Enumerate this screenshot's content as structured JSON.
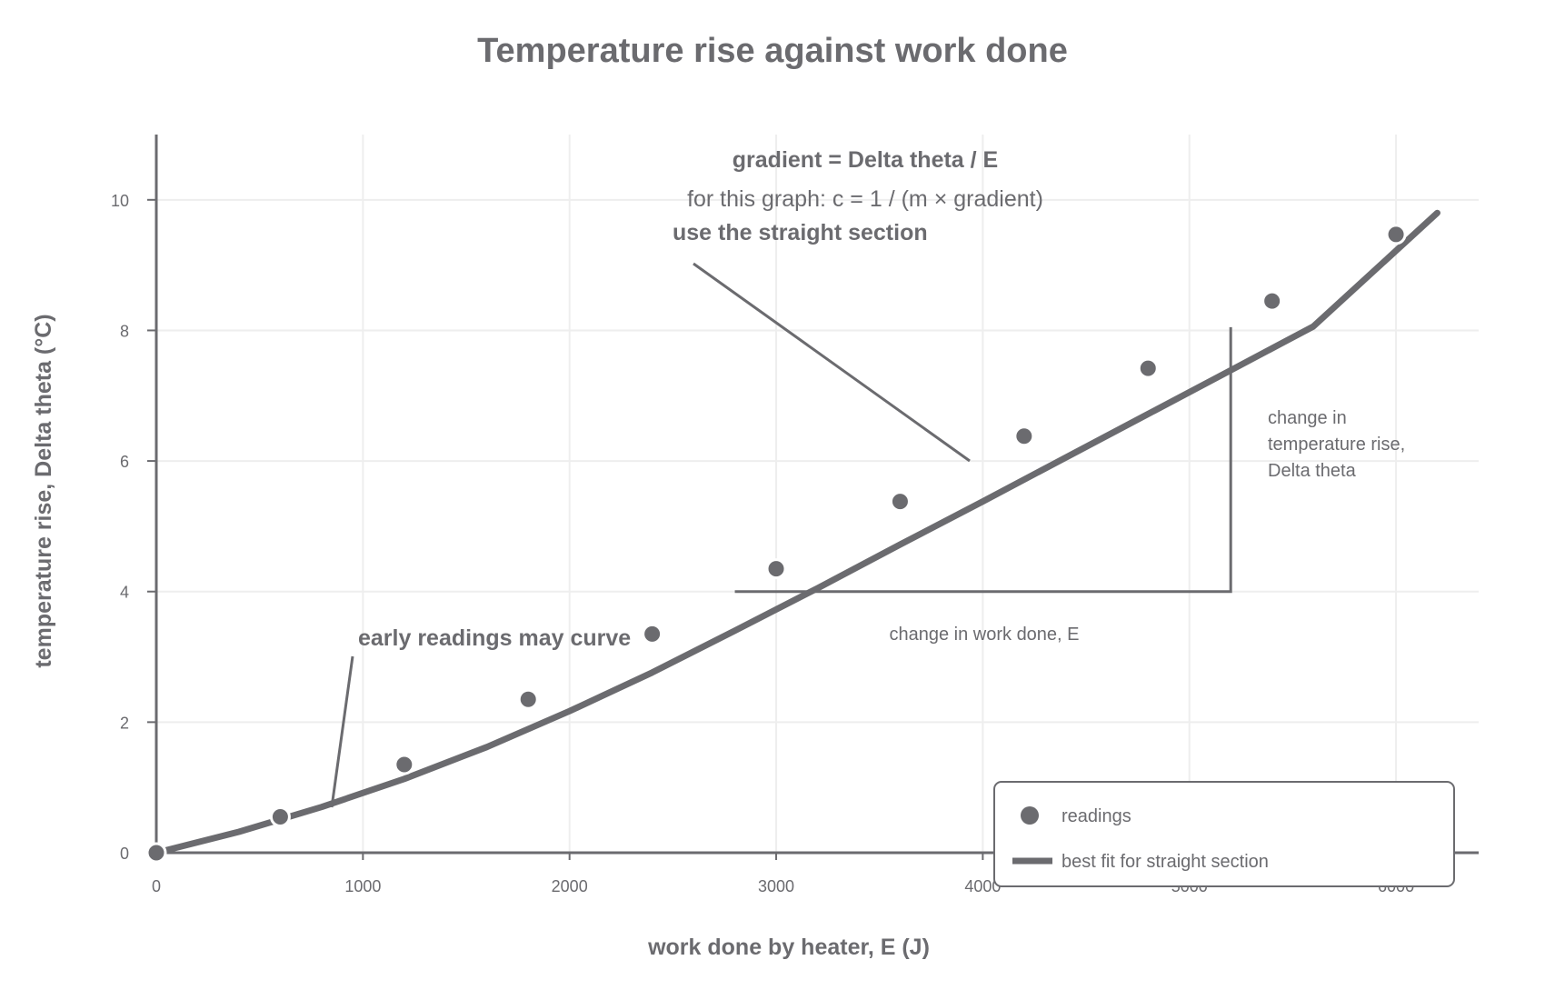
{
  "chart_data": {
    "type": "scatter",
    "title": "Temperature rise against work done",
    "xlabel": "work done by heater, E (J)",
    "ylabel": "temperature rise, Delta theta (°C)",
    "xlim": [
      0,
      6400
    ],
    "ylim": [
      0,
      11
    ],
    "xticks": [
      0,
      1000,
      2000,
      3000,
      4000,
      5000,
      6000
    ],
    "yticks": [
      0,
      2,
      4,
      6,
      8,
      10
    ],
    "grid": true,
    "legend_position": "bottom-right",
    "colors": {
      "ink": "#6b6b6f",
      "grid": "#eeeeee"
    },
    "series": [
      {
        "name": "readings",
        "type": "scatter",
        "x": [
          0,
          600,
          1200,
          1800,
          2400,
          3000,
          3600,
          4200,
          4800,
          5400,
          6000
        ],
        "y": [
          0.0,
          0.55,
          1.35,
          2.35,
          3.35,
          4.35,
          5.38,
          6.38,
          7.42,
          8.45,
          9.47
        ]
      },
      {
        "name": "best fit for straight section",
        "type": "line",
        "x": [
          0,
          400,
          800,
          1200,
          1600,
          2000,
          2400,
          2800,
          3200,
          3600,
          4000,
          4400,
          4800,
          5200,
          5600,
          6200
        ],
        "y": [
          0.0,
          0.32,
          0.7,
          1.13,
          1.62,
          2.17,
          2.76,
          3.4,
          4.05,
          4.72,
          5.38,
          6.05,
          6.72,
          7.39,
          8.06,
          9.8
        ]
      }
    ],
    "gradient_triangle": {
      "x1": 2800,
      "x2": 5200,
      "y1": 4,
      "y2": 8.05
    },
    "annotations": {
      "gradient": "gradient = Delta theta / E",
      "formula": "for this graph: c = 1 / (m × gradient)",
      "straight": "use the straight section",
      "early": "early readings may curve",
      "dx": "change in work done, E",
      "dy_line1": "change in",
      "dy_line2": "temperature rise,",
      "dy_line3": "Delta theta"
    }
  }
}
